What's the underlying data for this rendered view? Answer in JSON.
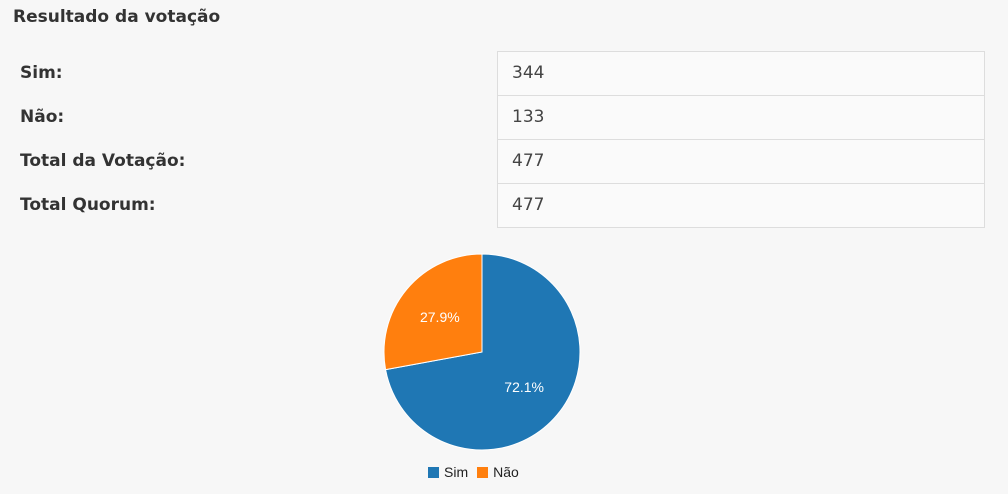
{
  "page": {
    "title": "Resultado da votação"
  },
  "results": [
    {
      "label": "Sim:",
      "value": "344"
    },
    {
      "label": "Não:",
      "value": "133"
    },
    {
      "label": "Total da Votação:",
      "value": "477"
    },
    {
      "label": "Total Quorum:",
      "value": "477"
    }
  ],
  "chart_data": {
    "type": "pie",
    "title": "",
    "categories": [
      "Sim",
      "Não"
    ],
    "values": [
      344,
      133
    ],
    "data_labels": [
      "72.1%",
      "27.9%"
    ],
    "colors": [
      "#1f77b4",
      "#ff7f0e"
    ],
    "legend": {
      "placement": "bottom",
      "entries": [
        "Sim",
        "Não"
      ]
    }
  }
}
